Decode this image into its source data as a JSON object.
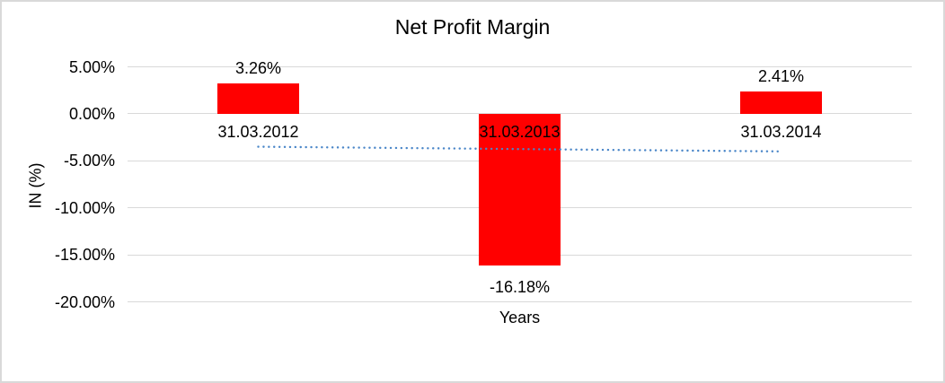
{
  "chart_data": {
    "type": "bar",
    "title": "Net Profit Margin",
    "xlabel": "Years",
    "ylabel": "IN (%)",
    "categories": [
      "31.03.2012",
      "31.03.2013",
      "31.03.2014"
    ],
    "series": [
      {
        "name": "Net Profit Margin",
        "values": [
          3.26,
          -16.18,
          2.41
        ]
      }
    ],
    "data_labels": [
      "3.26%",
      "-16.18%",
      "2.41%"
    ],
    "y_ticks": [
      {
        "label": "5.00%",
        "value": 5
      },
      {
        "label": "0.00%",
        "value": 0
      },
      {
        "label": "-5.00%",
        "value": -5
      },
      {
        "label": "-10.00%",
        "value": -10
      },
      {
        "label": "-15.00%",
        "value": -15
      },
      {
        "label": "-20.00%",
        "value": -20
      }
    ],
    "ylim": [
      -20,
      5
    ],
    "grid": true,
    "legend": "none",
    "trendline": {
      "type": "linear",
      "style": "dotted",
      "start_value": -3.5,
      "end_value": -4.0
    },
    "colors": {
      "bar": "#ff0000",
      "trendline": "#4a86c8",
      "gridline": "#d9d9d9",
      "text": "#000000",
      "background": "#ffffff",
      "border": "#d9d9d9"
    }
  }
}
